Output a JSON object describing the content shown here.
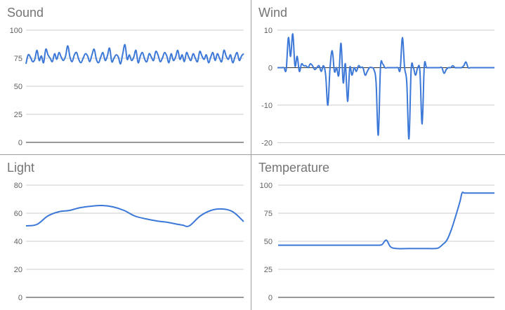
{
  "colors": {
    "line": "#3c78d8",
    "divider": "#9e9e9e",
    "grid": "#cccccc",
    "title": "#757575"
  },
  "chart_data": [
    {
      "type": "line",
      "title": "Sound",
      "ylim": [
        0,
        100
      ],
      "yticks": [
        0,
        25,
        50,
        75,
        100
      ],
      "zero_line": "bottom",
      "x": [
        0,
        1,
        2,
        3,
        4,
        5,
        6,
        7,
        8,
        9,
        10,
        11,
        12,
        13,
        14,
        15,
        16,
        17,
        18,
        19,
        20,
        21,
        22,
        23,
        24,
        25,
        26,
        27,
        28,
        29,
        30,
        31,
        32,
        33,
        34,
        35,
        36,
        37,
        38,
        39,
        40,
        41,
        42,
        43,
        44,
        45,
        46,
        47,
        48,
        49,
        50,
        51,
        52,
        53,
        54,
        55,
        56,
        57,
        58,
        59,
        60,
        61,
        62,
        63,
        64,
        65,
        66,
        67,
        68,
        69,
        70,
        71,
        72,
        73,
        74,
        75,
        76,
        77,
        78,
        79,
        80,
        81,
        82,
        83,
        84,
        85,
        86,
        87,
        88,
        89,
        90,
        91,
        92,
        93,
        94,
        95,
        96,
        97,
        98,
        99
      ],
      "values": [
        70,
        78,
        76,
        72,
        74,
        82,
        73,
        77,
        71,
        83,
        78,
        75,
        72,
        79,
        74,
        80,
        76,
        73,
        77,
        86,
        76,
        72,
        78,
        80,
        74,
        71,
        75,
        79,
        77,
        72,
        78,
        83,
        74,
        71,
        76,
        80,
        73,
        77,
        84,
        72,
        75,
        78,
        76,
        70,
        79,
        87,
        74,
        78,
        73,
        76,
        82,
        71,
        77,
        80,
        74,
        72,
        79,
        76,
        73,
        81,
        78,
        72,
        75,
        80,
        77,
        71,
        79,
        73,
        76,
        82,
        74,
        78,
        72,
        80,
        76,
        73,
        79,
        75,
        72,
        81,
        77,
        74,
        78,
        71,
        76,
        80,
        73,
        79,
        75,
        72,
        82,
        77,
        74,
        78,
        71,
        76,
        80,
        73,
        77,
        79
      ]
    },
    {
      "type": "line",
      "title": "Wind",
      "ylim": [
        -22,
        10
      ],
      "yticks": [
        -20,
        -10,
        0,
        10
      ],
      "zero_line": "zero",
      "x": [
        0,
        1,
        2,
        3,
        4,
        5,
        6,
        7,
        8,
        9,
        10,
        11,
        12,
        13,
        14,
        15,
        16,
        17,
        18,
        19,
        20,
        21,
        22,
        23,
        24,
        25,
        26,
        27,
        28,
        29,
        30,
        31,
        32,
        33,
        34,
        35,
        36,
        37,
        38,
        39,
        40,
        41,
        42,
        43,
        44,
        45,
        46,
        47,
        48,
        49,
        50,
        51,
        52,
        53,
        54,
        55,
        56,
        57,
        58,
        59,
        60,
        61,
        62,
        63,
        64,
        65,
        66,
        67,
        68,
        69,
        70,
        71,
        72,
        73,
        74,
        75,
        76,
        77,
        78,
        79,
        80,
        81,
        82,
        83,
        84,
        85,
        86,
        87,
        88,
        89,
        90,
        91,
        92,
        93,
        94,
        95,
        96,
        97,
        98,
        99
      ],
      "values": [
        0,
        0,
        0,
        0,
        -0.5,
        8,
        3,
        9,
        0.5,
        3,
        -1,
        1,
        0.5,
        0.5,
        0,
        1,
        0.5,
        -0.5,
        0,
        0.5,
        -1,
        0.5,
        -2,
        -10,
        0,
        4.5,
        -1,
        0,
        -2,
        6.5,
        -4,
        1,
        -9,
        0,
        -2,
        0,
        -1,
        0.5,
        0,
        0,
        -2,
        -1,
        0,
        0,
        -0.5,
        -4,
        -18,
        0,
        1,
        0,
        0,
        0,
        0,
        0,
        0,
        0,
        -0.5,
        8,
        0,
        -4,
        -19,
        -0.5,
        0,
        -2,
        0,
        -1,
        -15,
        0.5,
        0,
        0,
        0,
        0,
        0,
        0,
        0,
        0,
        -1.5,
        -0.5,
        0,
        0,
        0.5,
        0,
        0,
        0,
        0,
        0.5,
        1.5,
        0,
        0,
        0,
        0,
        0,
        0,
        0,
        0,
        0,
        0,
        0,
        0,
        0
      ]
    },
    {
      "type": "line",
      "title": "Light",
      "ylim": [
        0,
        80
      ],
      "yticks": [
        0,
        20,
        40,
        60,
        80
      ],
      "zero_line": "bottom",
      "x": [
        0,
        5,
        10,
        15,
        20,
        25,
        30,
        35,
        40,
        45,
        50,
        55,
        60,
        65,
        70,
        72,
        75,
        80,
        85,
        90,
        95,
        100
      ],
      "values": [
        51,
        52,
        58,
        61,
        62,
        64,
        65,
        65.5,
        64.5,
        62,
        58,
        56,
        54.5,
        53.5,
        52,
        51.5,
        51,
        58,
        62,
        63,
        61,
        54
      ]
    },
    {
      "type": "line",
      "title": "Temperature",
      "ylim": [
        0,
        100
      ],
      "yticks": [
        0,
        25,
        50,
        75,
        100
      ],
      "zero_line": "bottom",
      "x": [
        0,
        10,
        20,
        30,
        40,
        43,
        46,
        48,
        50,
        52,
        55,
        60,
        65,
        70,
        72,
        74,
        76,
        78,
        80,
        82,
        84,
        85,
        86,
        87,
        88,
        89,
        90,
        95,
        100
      ],
      "values": [
        46.5,
        46.5,
        46.5,
        46.5,
        46.5,
        46.5,
        46.5,
        47,
        51,
        45,
        43.5,
        43.5,
        43.5,
        43.5,
        43.5,
        44,
        47,
        51,
        60,
        72,
        85,
        93,
        93,
        93,
        93,
        93,
        93,
        93,
        93
      ]
    }
  ]
}
